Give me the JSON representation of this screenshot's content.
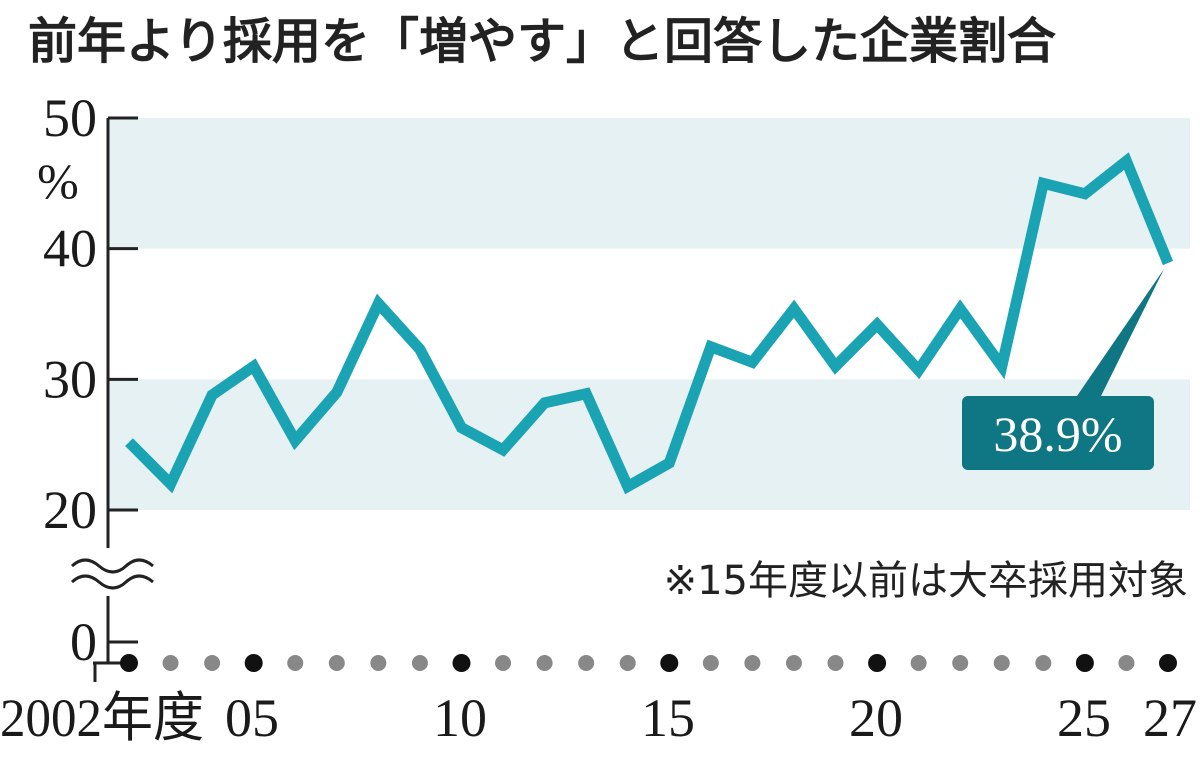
{
  "chart_data": {
    "type": "line",
    "title": "前年より採用を「増やす」と回答した企業割合",
    "unit": "%",
    "x": [
      2002,
      2003,
      2004,
      2005,
      2006,
      2007,
      2008,
      2009,
      2010,
      2011,
      2012,
      2013,
      2014,
      2015,
      2016,
      2017,
      2018,
      2019,
      2020,
      2021,
      2022,
      2023,
      2024,
      2025,
      2026,
      2027
    ],
    "series": [
      {
        "values": [
          25.2,
          22.0,
          28.8,
          31.0,
          25.3,
          29.0,
          35.8,
          32.3,
          26.3,
          24.6,
          28.2,
          28.9,
          21.8,
          23.6,
          32.5,
          31.3,
          35.4,
          31.0,
          34.2,
          30.7,
          35.4,
          31.0,
          45.0,
          44.2,
          46.7,
          38.9
        ]
      }
    ],
    "y_ticks": [
      "50",
      "40",
      "30",
      "20",
      "0"
    ],
    "x_tick_labels": [
      {
        "x": 2002,
        "label": "2002年度"
      },
      {
        "x": 2005,
        "label": "05"
      },
      {
        "x": 2010,
        "label": "10"
      },
      {
        "x": 2015,
        "label": "15"
      },
      {
        "x": 2020,
        "label": "20"
      },
      {
        "x": 2025,
        "label": "25"
      },
      {
        "x": 2027,
        "label": "27"
      }
    ],
    "ylim": [
      20,
      50
    ],
    "axis_break": "between 0 and 20",
    "bands": [
      [
        20,
        30
      ],
      [
        40,
        50
      ]
    ],
    "annotations": {
      "last_value_label": "38.9%",
      "note": "※15年度以前は大卒採用対象"
    },
    "colors": {
      "line": "#1aa3b3",
      "band": "#e6f1f4",
      "callout": "#0f7683",
      "axis": "#222222",
      "dot_major": "#111111",
      "dot_minor": "#888888"
    }
  }
}
